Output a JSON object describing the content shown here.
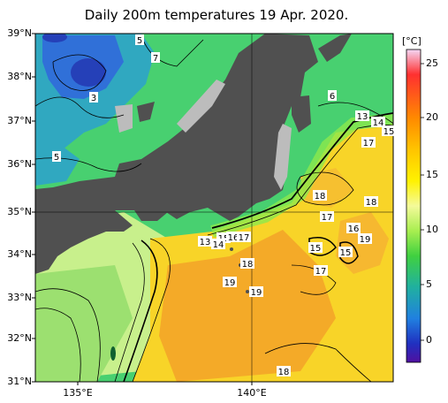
{
  "title": "Daily 200m temperatures 19 Apr. 2020.",
  "lat_labels": [
    "39°N",
    "38°N",
    "37°N",
    "36°N",
    "35°N",
    "34°N",
    "33°N",
    "32°N",
    "31°N"
  ],
  "lon_labels": [
    "135°E",
    "140°E"
  ],
  "colorbar": {
    "unit": "[°C]",
    "ticks": [
      "25",
      "20",
      "15",
      "10",
      "5",
      "0"
    ],
    "colors": [
      "#f4d6f4",
      "#ff3030",
      "#ff8a00",
      "#ffc400",
      "#fff200",
      "#f4fa9a",
      "#a8ee50",
      "#40d040",
      "#20b0a0",
      "#2080e0",
      "#2030c0",
      "#5010a0"
    ]
  },
  "colors": {
    "land": "#505050",
    "coast_gray": "#bcbcbc",
    "sea_cold": "#2a60d0",
    "sea_green": "#40c880",
    "sea_warm": "#f0a020",
    "sea_yellow": "#f8d820"
  },
  "contour_labels": [
    "5",
    "7",
    "3",
    "5",
    "6",
    "13",
    "14",
    "15",
    "17",
    "18",
    "17",
    "18",
    "16",
    "19",
    "15",
    "15",
    "17",
    "13",
    "15",
    "16",
    "17",
    "14",
    "18",
    "19",
    "19",
    "18"
  ]
}
